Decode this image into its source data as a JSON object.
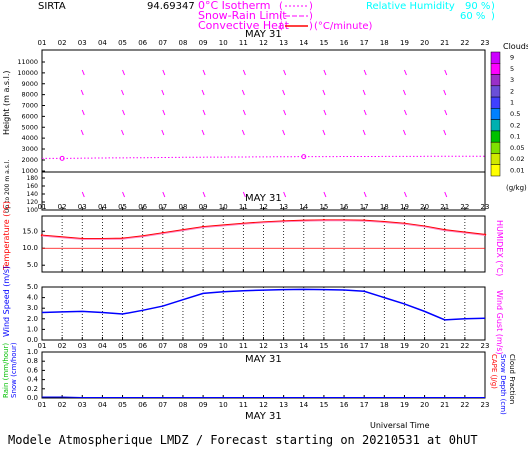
{
  "header": {
    "site": "SIRTA",
    "coord": "94.69347",
    "legend_iso": "0°C Isotherm",
    "legend_snow": "Snow-Rain Limit",
    "legend_conv": "Convective Heat",
    "legend_unit": "(°C/minute)",
    "rh_label": "Relative Humidity",
    "rh90": "90 %",
    "rh60": "60 %"
  },
  "date_label": "MAY 31",
  "footer": "Modele Atmospherique LMDZ / Forecast starting on 20210531 at 0hUT",
  "universal_time": "Universal Time",
  "colors": {
    "magenta": "#ff00ff",
    "cyan": "#00ffff",
    "red": "#ff0000",
    "blue": "#0000ff",
    "orange": "#ff8080",
    "green": "#00c000",
    "grid": "#000000"
  },
  "chart_data": [
    {
      "type": "scatter",
      "panel": "clouds-height",
      "ylabel": "Height (m a.s.l.)",
      "ylabel2": "Up to 200 m a.s.l.",
      "x": [
        "01",
        "02",
        "03",
        "04",
        "05",
        "06",
        "07",
        "08",
        "09",
        "10",
        "11",
        "12",
        "13",
        "14",
        "15",
        "16",
        "17",
        "18",
        "19",
        "20",
        "21",
        "22",
        "23"
      ],
      "yticks_upper": [
        "11000",
        "10000",
        "9000",
        "8000",
        "7000",
        "6000",
        "5000",
        "4000",
        "3000",
        "2000",
        "1000"
      ],
      "yticks_lower": [
        "180",
        "160",
        "140",
        "120",
        "100"
      ],
      "isotherm_height_m": [
        2600,
        2600,
        2620,
        2640,
        2650,
        2660,
        2680,
        2700,
        2710,
        2720,
        2730,
        2740,
        2750,
        2760,
        2760,
        2770,
        2770,
        2780,
        2780,
        2790,
        2790,
        2800,
        2800
      ],
      "colorbar_title": "Clouds",
      "colorbar_labels": [
        "9",
        "5",
        "3",
        "2",
        "1",
        "0.5",
        "0.2",
        "0.1",
        "0.05",
        "0.02",
        "0.01"
      ],
      "colorbar_colors": [
        "#cc00ff",
        "#ff00ff",
        "#9a2fc8",
        "#6a4fd8",
        "#4040ff",
        "#0080ff",
        "#00b0b0",
        "#00c000",
        "#80e000",
        "#d0e800",
        "#ffff00"
      ],
      "colorbar_unit": "(g/kg)"
    },
    {
      "type": "line",
      "panel": "temperature",
      "ylabel": "Temperature (°C)",
      "ylabel2": "HUMIDEX (°C)",
      "x": [
        "01",
        "02",
        "03",
        "04",
        "05",
        "06",
        "07",
        "08",
        "09",
        "10",
        "11",
        "12",
        "13",
        "14",
        "15",
        "16",
        "17",
        "18",
        "19",
        "20",
        "21",
        "22",
        "23"
      ],
      "yticks": [
        "15.0",
        "10.0",
        "5.0"
      ],
      "ylim": [
        3,
        19.5
      ],
      "series": [
        {
          "values": [
            13.8,
            13.3,
            12.8,
            12.8,
            12.9,
            13.6,
            14.5,
            15.4,
            16.3,
            16.8,
            17.3,
            17.7,
            18.0,
            18.2,
            18.3,
            18.3,
            18.2,
            17.8,
            17.3,
            16.5,
            15.4,
            14.7,
            14.0
          ]
        },
        {
          "values": [
            13.6,
            13.1,
            12.6,
            12.6,
            12.7,
            13.4,
            14.3,
            15.2,
            16.1,
            16.6,
            17.1,
            17.5,
            17.8,
            18.0,
            18.1,
            18.1,
            18.0,
            17.6,
            17.1,
            16.3,
            15.2,
            14.5,
            13.8
          ]
        }
      ],
      "zero_line": 10.0
    },
    {
      "type": "line",
      "panel": "wind",
      "ylabel": "Wind Speed (m/s)",
      "ylabel2": "Wind Gust (m/s)",
      "x": [
        "01",
        "02",
        "03",
        "04",
        "05",
        "06",
        "07",
        "08",
        "09",
        "10",
        "11",
        "12",
        "13",
        "14",
        "15",
        "16",
        "17",
        "18",
        "19",
        "20",
        "21",
        "22",
        "23"
      ],
      "yticks": [
        "5.0",
        "4.0",
        "3.0",
        "2.0",
        "1.0",
        "0.0"
      ],
      "ylim": [
        0,
        5
      ],
      "series": [
        {
          "values": [
            2.6,
            2.65,
            2.7,
            2.6,
            2.45,
            2.8,
            3.2,
            3.8,
            4.4,
            4.55,
            4.65,
            4.7,
            4.75,
            4.78,
            4.75,
            4.72,
            4.6,
            4.0,
            3.4,
            2.7,
            1.9,
            2.0,
            2.05
          ]
        }
      ]
    },
    {
      "type": "line",
      "panel": "precip",
      "ylabel": "Rain (mm/hour)",
      "ylabel_snow": "Snow (cm/hour)",
      "ylabel2": "CAPE (J/g)",
      "ylabel3": "Snow Depth (cm)",
      "ylabel4": "Cloud Fraction",
      "x": [
        "01",
        "02",
        "03",
        "04",
        "05",
        "06",
        "07",
        "08",
        "09",
        "10",
        "11",
        "12",
        "13",
        "14",
        "15",
        "16",
        "17",
        "18",
        "19",
        "20",
        "21",
        "22",
        "23"
      ],
      "yticks": [
        "1.0",
        "0.8",
        "0.6",
        "0.4",
        "0.2",
        "0.0"
      ],
      "ylim": [
        0,
        1
      ],
      "series": [
        {
          "values": [
            0.01,
            0.01,
            0.0,
            0.0,
            0.0,
            0.0,
            0.0,
            0.0,
            0.0,
            0.0,
            0.0,
            0.0,
            0.0,
            0.0,
            0.0,
            0.0,
            0.0,
            0.0,
            0.0,
            0.0,
            0.0,
            0.0,
            0.0
          ]
        }
      ]
    }
  ]
}
